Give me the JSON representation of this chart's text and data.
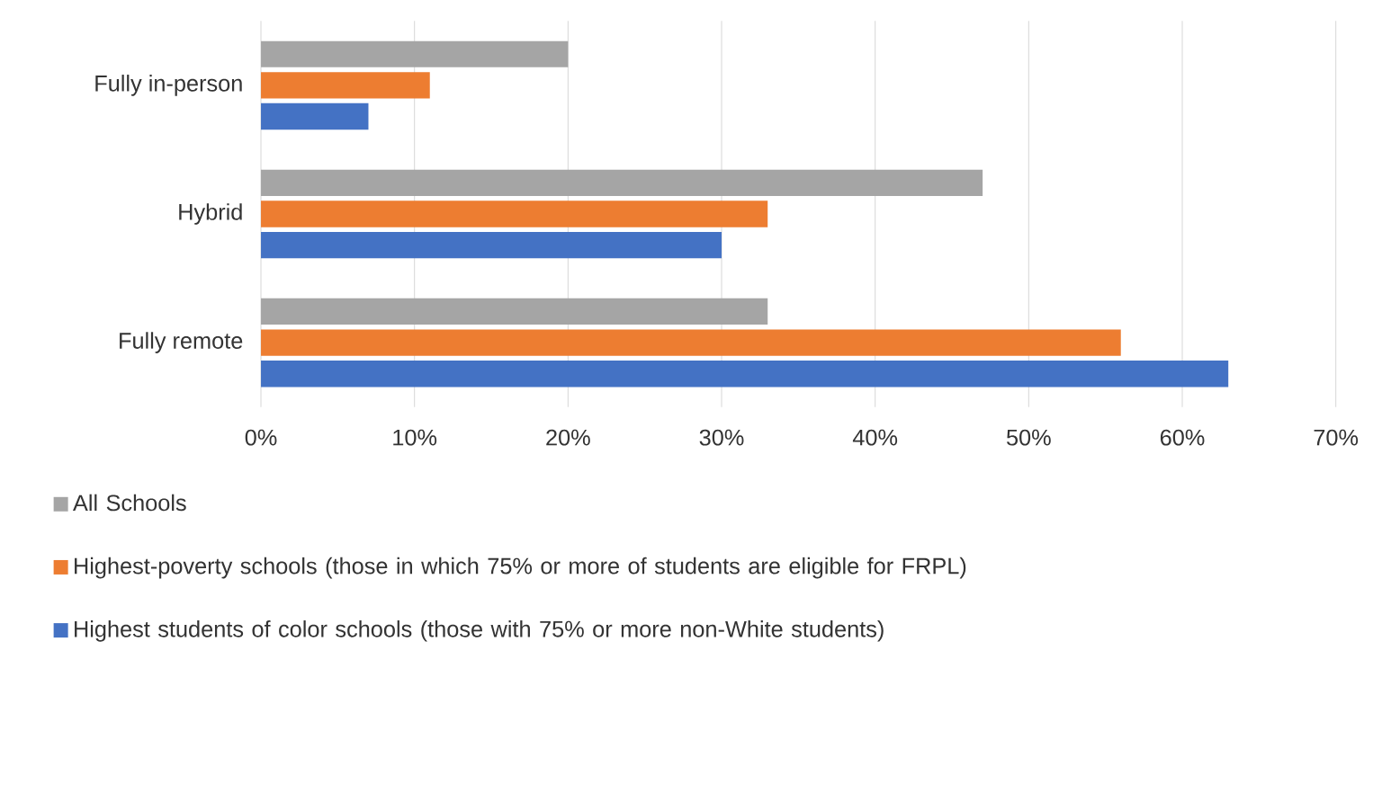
{
  "chart_data": {
    "type": "bar",
    "orientation": "horizontal",
    "categories": [
      "Fully in-person",
      "Hybrid",
      "Fully remote"
    ],
    "series": [
      {
        "name": "All Schools",
        "color": "#a5a5a5",
        "values": [
          20,
          47,
          33
        ]
      },
      {
        "name": "Highest-poverty schools (those in which 75% or more of students are eligible for FRPL)",
        "color": "#ed7d31",
        "values": [
          11,
          33,
          56
        ]
      },
      {
        "name": "Highest students of color schools (those with 75% or more non-White students)",
        "color": "#4472c4",
        "values": [
          7,
          30,
          63
        ]
      }
    ],
    "xlim": [
      0,
      70
    ],
    "xticks": [
      {
        "value": 0,
        "label": "0%"
      },
      {
        "value": 10,
        "label": "10%"
      },
      {
        "value": 20,
        "label": "20%"
      },
      {
        "value": 30,
        "label": "30%"
      },
      {
        "value": 40,
        "label": "40%"
      },
      {
        "value": 50,
        "label": "50%"
      },
      {
        "value": 60,
        "label": "60%"
      },
      {
        "value": 70,
        "label": "70%"
      }
    ],
    "grid": "x",
    "legend": "bottom"
  }
}
